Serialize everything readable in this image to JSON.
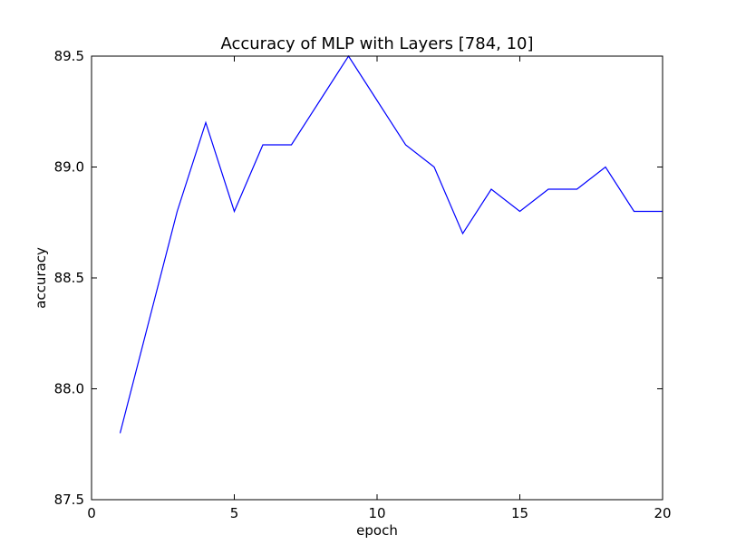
{
  "chart_data": {
    "type": "line",
    "title": "Accuracy of MLP with Layers [784, 10]",
    "xlabel": "epoch",
    "ylabel": "accuracy",
    "xlim": [
      0,
      20
    ],
    "ylim": [
      87.5,
      89.5
    ],
    "xticks": [
      0,
      5,
      10,
      15,
      20
    ],
    "xtick_labels": [
      "0",
      "5",
      "10",
      "15",
      "20"
    ],
    "yticks": [
      87.5,
      88.0,
      88.5,
      89.0,
      89.5
    ],
    "ytick_labels": [
      "87.5",
      "88.0",
      "88.5",
      "89.0",
      "89.5"
    ],
    "grid": false,
    "legend": "none",
    "series": [
      {
        "color": "#0000ff",
        "x": [
          1,
          2,
          3,
          4,
          5,
          6,
          7,
          8,
          9,
          10,
          11,
          12,
          13,
          14,
          15,
          16,
          17,
          18,
          19,
          20
        ],
        "y": [
          87.8,
          88.3,
          88.8,
          89.2,
          88.8,
          89.1,
          89.1,
          89.3,
          89.5,
          89.3,
          89.1,
          89.0,
          88.7,
          88.9,
          88.8,
          88.9,
          88.9,
          89.0,
          88.8,
          88.8
        ]
      }
    ]
  }
}
